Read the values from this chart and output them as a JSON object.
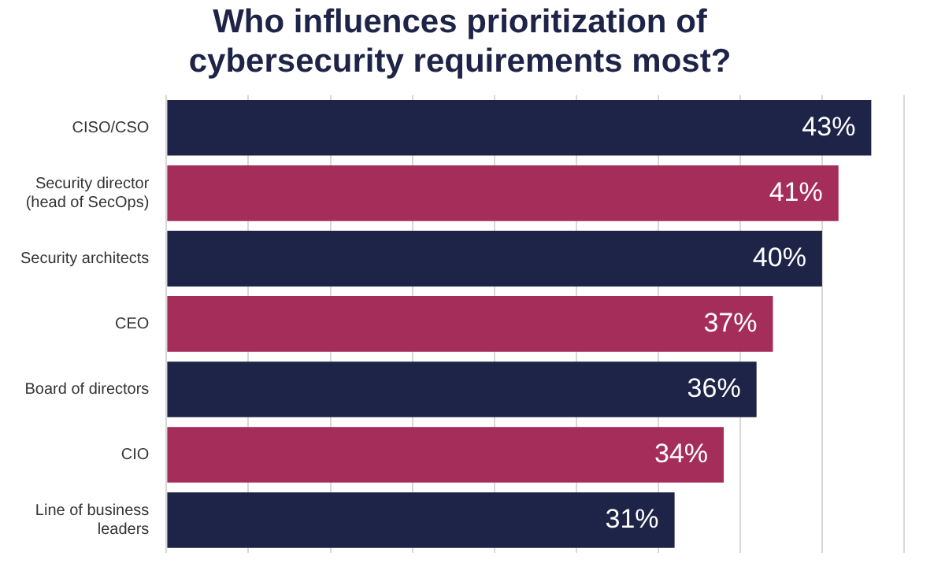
{
  "chart_data": {
    "type": "bar",
    "orientation": "horizontal",
    "title": "Who influences prioritization of cybersecurity requirements most?",
    "categories": [
      "CISO/CSO",
      "Security director (head of SecOps)",
      "Security architects",
      "CEO",
      "Board of directors",
      "CIO",
      "Line of business leaders"
    ],
    "values": [
      43,
      41,
      40,
      37,
      36,
      34,
      31
    ],
    "colors": [
      "#1e2447",
      "#a52d59",
      "#1e2447",
      "#a52d59",
      "#1e2447",
      "#a52d59",
      "#1e2447"
    ],
    "value_labels": [
      "43%",
      "41%",
      "40%",
      "37%",
      "36%",
      "34%",
      "31%"
    ],
    "tick_labels": "y",
    "grid": "x"
  }
}
